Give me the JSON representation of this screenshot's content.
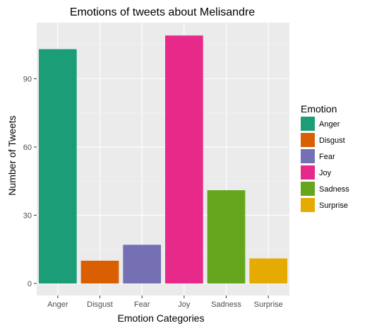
{
  "chart_data": {
    "type": "bar",
    "title": "Emotions of tweets about Melisandre",
    "xlabel": "Emotion Categories",
    "ylabel": "Number of Tweets",
    "categories": [
      "Anger",
      "Disgust",
      "Fear",
      "Joy",
      "Sadness",
      "Surprise"
    ],
    "values": [
      103,
      10,
      17,
      109,
      41,
      11
    ],
    "colors": [
      "#1b9e77",
      "#d95f02",
      "#7570b3",
      "#e7298a",
      "#66a61e",
      "#e6ab02"
    ],
    "ylim": [
      0,
      112
    ],
    "yticks": [
      0,
      30,
      60,
      90
    ],
    "grid": true,
    "panel_background": "#ebebeb",
    "legend": {
      "title": "Emotion",
      "placement": "right",
      "entries": [
        "Anger",
        "Disgust",
        "Fear",
        "Joy",
        "Sadness",
        "Surprise"
      ]
    }
  }
}
